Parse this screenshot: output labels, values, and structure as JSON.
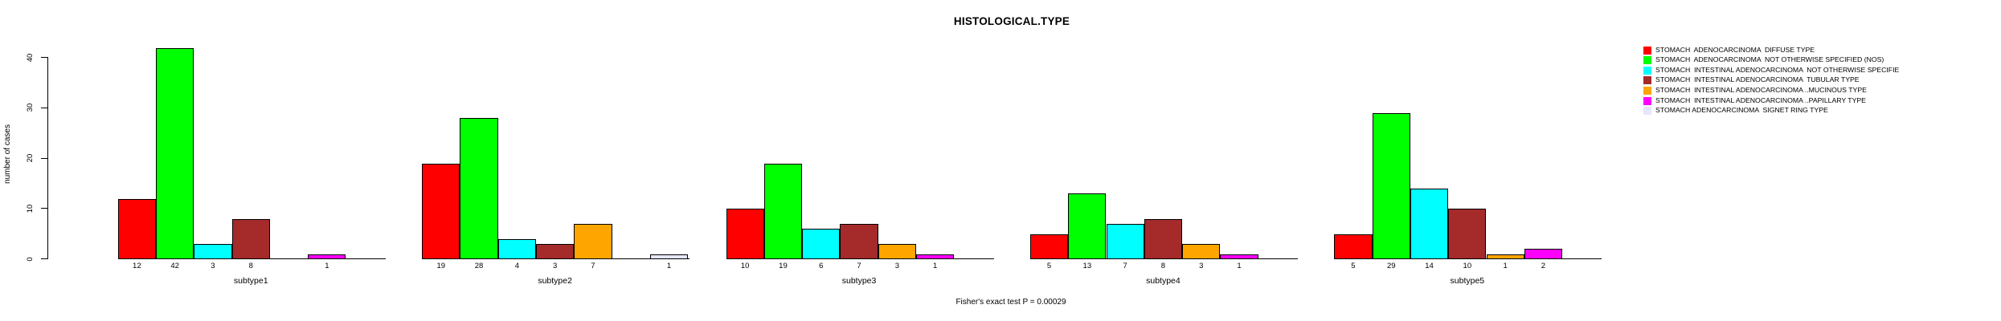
{
  "header": {
    "title": "HISTOLOGICAL.TYPE"
  },
  "footer": {
    "caption": "Fisher's exact test P = 0.00029"
  },
  "chart_data": {
    "type": "bar",
    "title": "HISTOLOGICAL.TYPE",
    "xlabel": "",
    "ylabel": "number of cases",
    "ylim": [
      0,
      44
    ],
    "yticks": [
      0,
      10,
      20,
      30,
      40
    ],
    "grid": false,
    "legend_position": "right-outside",
    "bar_value_labels": true,
    "categories": [
      "subtype1",
      "subtype2",
      "subtype3",
      "subtype4",
      "subtype5"
    ],
    "series": [
      {
        "name": "STOMACH  ADENOCARCINOMA  DIFFUSE TYPE",
        "color": "#FF0000",
        "values": [
          12,
          19,
          10,
          5,
          5
        ]
      },
      {
        "name": "STOMACH  ADENOCARCINOMA  NOT OTHERWISE SPECIFIED (NOS)",
        "color": "#00FF00",
        "values": [
          42,
          28,
          19,
          13,
          29
        ]
      },
      {
        "name": "STOMACH  INTESTINAL ADENOCARCINOMA  NOT OTHERWISE SPECIFIE",
        "color": "#00FFFF",
        "values": [
          3,
          4,
          6,
          7,
          14
        ]
      },
      {
        "name": "STOMACH  INTESTINAL ADENOCARCINOMA  TUBULAR TYPE",
        "color": "#A52A2A",
        "values": [
          8,
          3,
          7,
          8,
          10
        ]
      },
      {
        "name": "STOMACH  INTESTINAL ADENOCARCINOMA ..MUCINOUS TYPE",
        "color": "#FFA500",
        "values": [
          0,
          7,
          3,
          3,
          1
        ]
      },
      {
        "name": "STOMACH  INTESTINAL ADENOCARCINOMA ..PAPILLARY TYPE",
        "color": "#FF00FF",
        "values": [
          1,
          0,
          1,
          1,
          2
        ]
      },
      {
        "name": "STOMACH ADENOCARCINOMA  SIGNET RING TYPE",
        "color": "#E6E6FA",
        "values": [
          0,
          1,
          0,
          0,
          0
        ]
      }
    ],
    "annotation": "Fisher's exact test P = 0.00029"
  }
}
